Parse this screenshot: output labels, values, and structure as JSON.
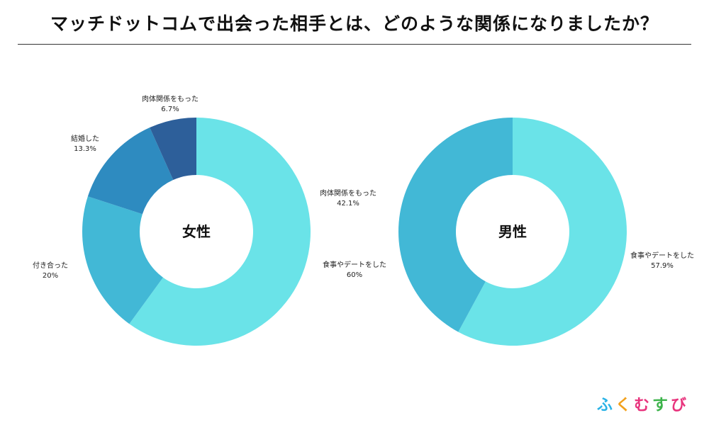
{
  "title": "マッチドットコムで出会った相手とは、どのような関係になりましたか？",
  "logo": [
    "ふ",
    "く",
    "む",
    "す",
    "び"
  ],
  "chart_data": [
    {
      "type": "pie",
      "center_label": "女性",
      "slices": [
        {
          "label": "食事やデートをした",
          "value": 60,
          "value_text": "60%",
          "color": "#6ae3e8"
        },
        {
          "label": "付き合った",
          "value": 20,
          "value_text": "20%",
          "color": "#42b8d6"
        },
        {
          "label": "結婚した",
          "value": 13.3,
          "value_text": "13.3%",
          "color": "#2e8bc0"
        },
        {
          "label": "肉体関係をもった",
          "value": 6.7,
          "value_text": "6.7%",
          "color": "#2d5f9a"
        }
      ]
    },
    {
      "type": "pie",
      "center_label": "男性",
      "slices": [
        {
          "label": "食事やデートをした",
          "value": 57.9,
          "value_text": "57.9%",
          "color": "#6ae3e8"
        },
        {
          "label": "肉体関係をもった",
          "value": 42.1,
          "value_text": "42.1%",
          "color": "#42b8d6"
        }
      ]
    }
  ]
}
